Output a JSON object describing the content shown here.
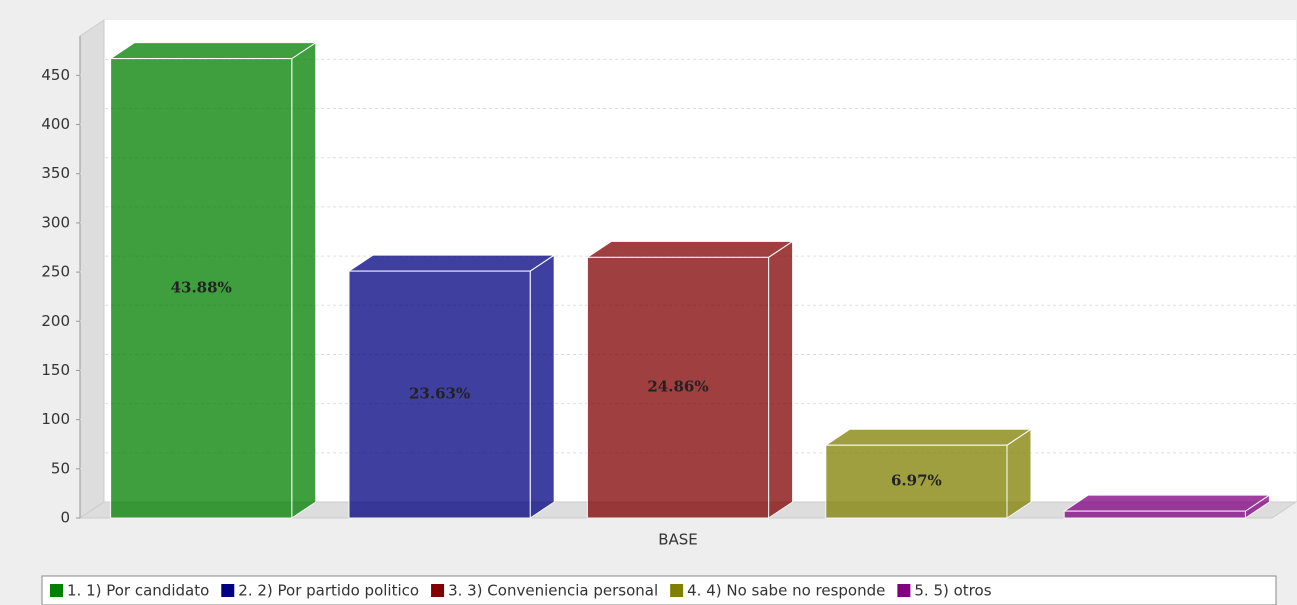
{
  "chart_data": {
    "type": "bar3d",
    "categories": [
      "BASE"
    ],
    "series": [
      {
        "name": "1. 1) Por candidato",
        "color": "#008000",
        "values": [
          467
        ],
        "value_labels": [
          "43.88%"
        ]
      },
      {
        "name": "2. 2) Por partido politico",
        "color": "#000080",
        "values": [
          251
        ],
        "value_labels": [
          "23.63%"
        ]
      },
      {
        "name": "3. 3) Conveniencia personal",
        "color": "#800000",
        "values": [
          265
        ],
        "value_labels": [
          "24.86%"
        ]
      },
      {
        "name": "4. 4) No sabe no responde",
        "color": "#808000",
        "values": [
          74
        ],
        "value_labels": [
          "6.97%"
        ]
      },
      {
        "name": "5. 5) otros",
        "color": "#800080",
        "values": [
          7
        ],
        "value_labels": [
          null
        ]
      }
    ],
    "ylim": [
      0,
      490
    ],
    "yticks": [
      0,
      50,
      100,
      150,
      200,
      250,
      300,
      350,
      400,
      450
    ],
    "grid": true,
    "legend": "bottom"
  }
}
